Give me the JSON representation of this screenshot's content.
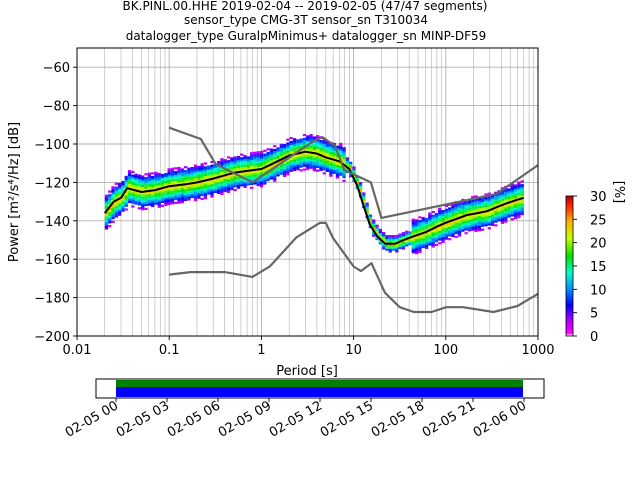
{
  "title": {
    "line1": "BK.PINL.00.HHE   2019-02-04 -- 2019-02-05  (47/47 segments)",
    "line2": "sensor_type CMG-3T sensor_sn T310034",
    "line3": "datalogger_type GuralpMinimus+ datalogger_sn MINP-DF59"
  },
  "chart_data": {
    "type": "heatmap",
    "subtype": "probabilistic-power-spectral-density",
    "xlabel": "Period [s]",
    "ylabel": "Power [m²/s⁴/Hz] [dB]",
    "x_scale": "log",
    "xlim": [
      0.01,
      1000
    ],
    "ylim": [
      -200,
      -50
    ],
    "x_ticks": [
      {
        "value": 0.01,
        "label": "0.01"
      },
      {
        "value": 0.1,
        "label": "0.1"
      },
      {
        "value": 1,
        "label": "1"
      },
      {
        "value": 10,
        "label": "10"
      },
      {
        "value": 100,
        "label": "100"
      },
      {
        "value": 1000,
        "label": "1000"
      }
    ],
    "y_ticks": [
      {
        "value": -60,
        "label": "−60"
      },
      {
        "value": -80,
        "label": "−80"
      },
      {
        "value": -100,
        "label": "−100"
      },
      {
        "value": -120,
        "label": "−120"
      },
      {
        "value": -140,
        "label": "−140"
      },
      {
        "value": -160,
        "label": "−160"
      },
      {
        "value": -180,
        "label": "−180"
      },
      {
        "value": -200,
        "label": "−200"
      }
    ],
    "grid": true,
    "colorbar": {
      "label": "[%]",
      "range": [
        0,
        30
      ],
      "ticks": [
        {
          "value": 0,
          "label": "0"
        },
        {
          "value": 5,
          "label": "5"
        },
        {
          "value": 10,
          "label": "10"
        },
        {
          "value": 15,
          "label": "15"
        },
        {
          "value": 20,
          "label": "20"
        },
        {
          "value": 25,
          "label": "25"
        },
        {
          "value": 30,
          "label": "30"
        }
      ]
    },
    "series": [
      {
        "role": "median",
        "color": "#000000",
        "x": [
          0.02,
          0.025,
          0.03,
          0.035,
          0.05,
          0.07,
          0.1,
          0.15,
          0.2,
          0.3,
          0.5,
          0.7,
          1,
          1.5,
          2,
          3,
          4,
          5,
          7,
          9,
          11,
          13,
          15,
          18,
          22,
          28,
          35,
          45,
          60,
          80,
          100,
          130,
          170,
          220,
          280,
          350,
          450,
          600,
          700
        ],
        "y": [
          -136,
          -130,
          -128,
          -123,
          -125,
          -124,
          -122,
          -121,
          -120,
          -118,
          -115,
          -114,
          -113,
          -109,
          -106,
          -104,
          -105,
          -107,
          -109,
          -113,
          -122,
          -133,
          -142,
          -148,
          -152,
          -152,
          -150,
          -148,
          -146,
          -143,
          -141,
          -139,
          -137,
          -136,
          -135,
          -133,
          -131,
          -129,
          -128
        ]
      },
      {
        "role": "high-noise-model",
        "color": "#666666",
        "x": [
          0.1,
          0.22,
          0.32,
          0.8,
          3.8,
          4.6,
          6.3,
          7.9,
          15.4,
          20,
          354.8,
          1000
        ],
        "y": [
          -91.5,
          -97.4,
          -110.5,
          -120,
          -98,
          -96.5,
          -101,
          -113.5,
          -120,
          -138.5,
          -126,
          -111
        ]
      },
      {
        "role": "low-noise-model",
        "color": "#666666",
        "x": [
          0.1,
          0.17,
          0.4,
          0.8,
          1.24,
          2.4,
          4.3,
          5,
          6,
          10,
          12,
          15.6,
          21.9,
          31.6,
          45,
          70,
          101,
          154,
          328,
          600,
          1000
        ],
        "y": [
          -168,
          -166.7,
          -166.7,
          -169.2,
          -163.7,
          -148.6,
          -141.1,
          -141.1,
          -149,
          -163.8,
          -166.2,
          -162.1,
          -177.5,
          -185,
          -187.5,
          -187.5,
          -185,
          -185,
          -187.5,
          -184.4,
          -178
        ]
      }
    ]
  },
  "timeline": {
    "segments_color": "#008000",
    "data_color": "#0000ff",
    "start": "02-05 00",
    "end": "02-06 00",
    "ticks": [
      "02-05 00",
      "02-05 03",
      "02-05 06",
      "02-05 09",
      "02-05 12",
      "02-05 15",
      "02-05 18",
      "02-05 21",
      "02-06 00"
    ]
  }
}
